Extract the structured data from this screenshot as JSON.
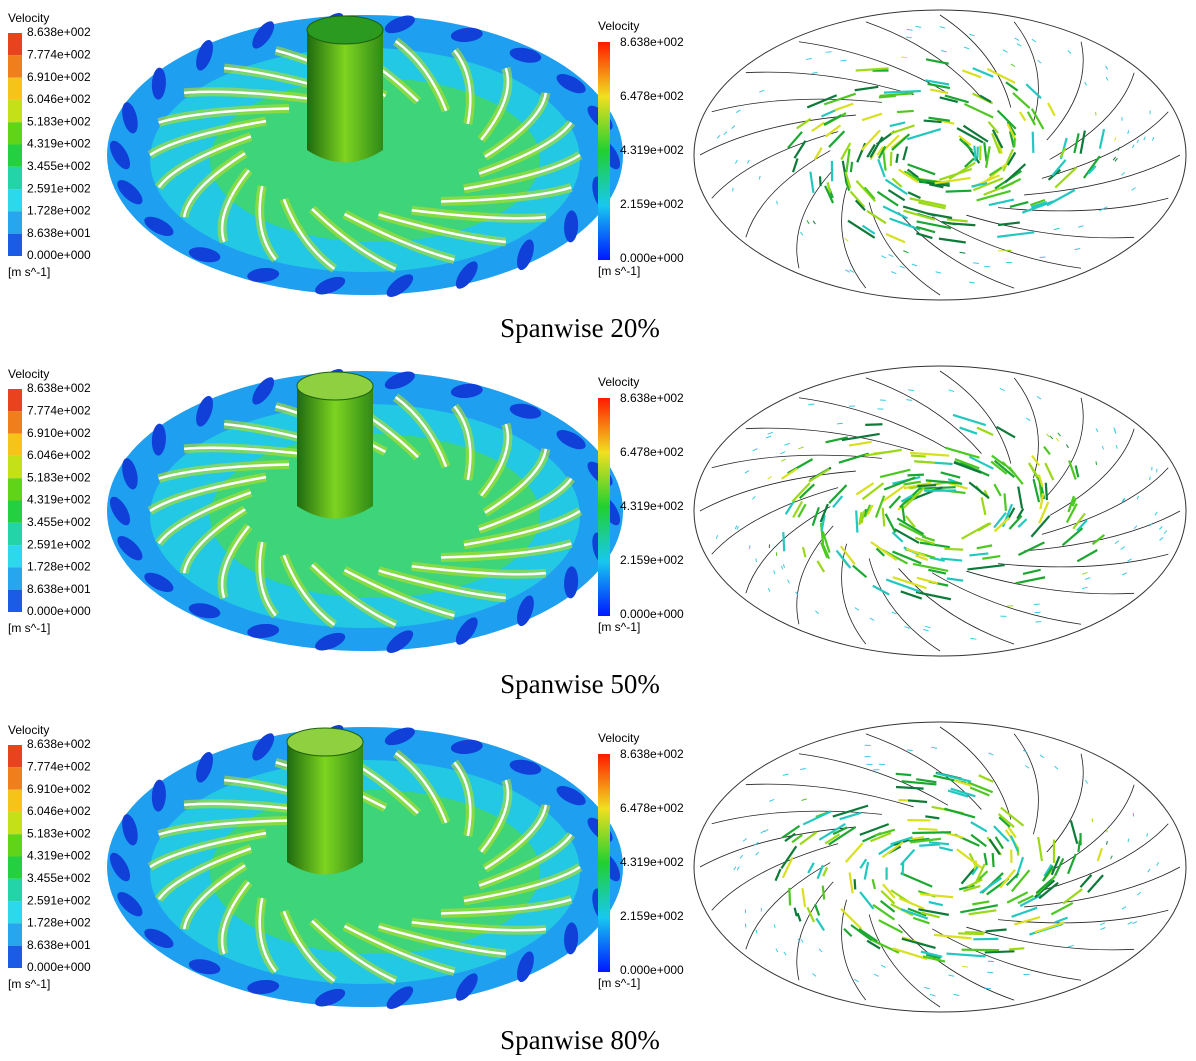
{
  "rows": [
    {
      "contour_legend": {
        "title": "Velocity",
        "labels": [
          "8.638e+002",
          "7.774e+002",
          "6.910e+002",
          "6.046e+002",
          "5.183e+002",
          "4.319e+002",
          "3.455e+002",
          "2.591e+002",
          "1.728e+002",
          "8.638e+001",
          "0.000e+000"
        ],
        "unit": "[m s^-1]"
      },
      "vector_legend": {
        "title": "Velocity",
        "labels": [
          "8.638e+002",
          "6.478e+002",
          "4.319e+002",
          "2.159e+002",
          "0.000e+000"
        ],
        "unit": "[m s^-1]"
      },
      "caption": "Spanwise 20%"
    },
    {
      "contour_legend": {
        "title": "Velocity",
        "labels": [
          "8.638e+002",
          "7.774e+002",
          "6.910e+002",
          "6.046e+002",
          "5.183e+002",
          "4.319e+002",
          "3.455e+002",
          "2.591e+002",
          "1.728e+002",
          "8.638e+001",
          "0.000e+000"
        ],
        "unit": "[m s^-1]"
      },
      "vector_legend": {
        "title": "Velocity",
        "labels": [
          "8.638e+002",
          "6.478e+002",
          "4.319e+002",
          "2.159e+002",
          "0.000e+000"
        ],
        "unit": "[m s^-1]"
      },
      "caption": "Spanwise 50%"
    },
    {
      "contour_legend": {
        "title": "Velocity",
        "labels": [
          "8.638e+002",
          "7.774e+002",
          "6.910e+002",
          "6.046e+002",
          "5.183e+002",
          "4.319e+002",
          "3.455e+002",
          "2.591e+002",
          "1.728e+002",
          "8.638e+001",
          "0.000e+000"
        ],
        "unit": "[m s^-1]"
      },
      "vector_legend": {
        "title": "Velocity",
        "labels": [
          "8.638e+002",
          "6.478e+002",
          "4.319e+002",
          "2.159e+002",
          "0.000e+000"
        ],
        "unit": "[m s^-1]"
      },
      "caption": "Spanwise 80%"
    }
  ]
}
